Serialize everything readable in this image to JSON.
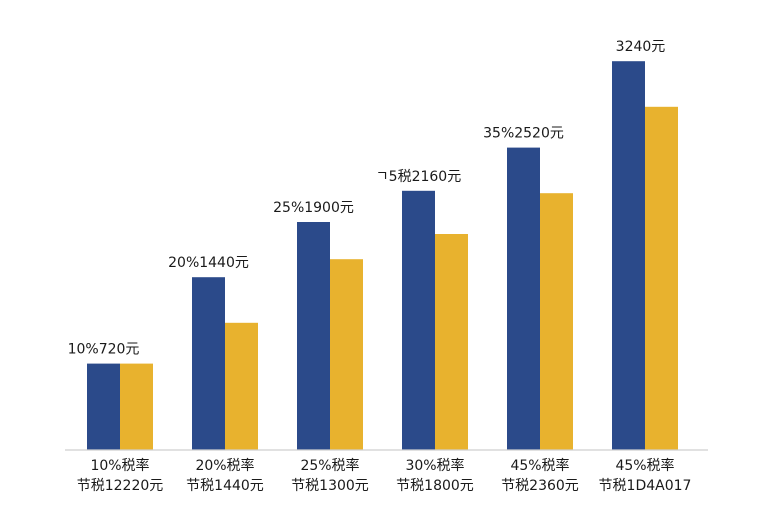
{
  "chart_data": {
    "type": "bar",
    "title": "",
    "xlabel": "",
    "ylabel": "",
    "grid": false,
    "legend": "none",
    "colors": {
      "series_a": "#2b4a8a",
      "series_b": "#e8b22e",
      "axis": "#cfcfcf"
    },
    "categories": [
      "10%税率\n节税12220元",
      "20%税率\n节税1440元",
      "25%税率\n节税1300元",
      "30%税率\n节税1800元",
      "45%税率\n节税2360元",
      "45%税率\n节税1D4A017"
    ],
    "data_labels": [
      "10%720元",
      "20%1440元",
      "25%1900元",
      "ㄱ5税2160元",
      "35%2520元",
      "3240元"
    ],
    "series": [
      {
        "values": [
          720,
          1440,
          1900,
          2160,
          2520,
          3240
        ]
      },
      {
        "values": [
          720,
          1060,
          1590,
          1800,
          2140,
          2860
        ]
      }
    ],
    "ylim": [
      0,
      3500
    ]
  }
}
